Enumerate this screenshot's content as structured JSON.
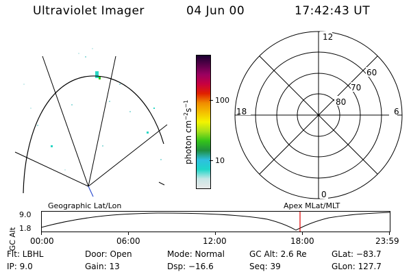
{
  "header": {
    "instrument": "Ultraviolet Imager",
    "date": "04 Jun 00",
    "time": "17:42:43 UT"
  },
  "colorbar": {
    "axis_label": "photon cm^-2 s^-1",
    "tick_100": "100",
    "tick_10": "10",
    "stops": [
      "#e8e8e8",
      "#c8e6e6",
      "#1fd6c8",
      "#2ebfe0",
      "#1f8f3f",
      "#34c31a",
      "#a6e01a",
      "#f4f400",
      "#f4c000",
      "#f08c00",
      "#e02000",
      "#c80040",
      "#9a0060",
      "#5a004a",
      "#1a0030"
    ]
  },
  "polar_plot": {
    "labels": {
      "top": "12",
      "left": "18",
      "right": "6",
      "bottom": "0"
    },
    "lat_labels": [
      "60",
      "70",
      "80"
    ]
  },
  "timeline": {
    "left_label": "Geographic Lat/Lon",
    "right_label": "Apex MLat/MLT",
    "ylabel": "GC Alt",
    "y_ticks": [
      "9.0",
      "1.8"
    ],
    "x_ticks": [
      "00:00",
      "06:00",
      "12:00",
      "18:00",
      "23:59"
    ],
    "marker_color": "#e00000"
  },
  "info": {
    "flt": "Flt:  LBHL",
    "ip": "IP:  9.0",
    "door": "Door: Open",
    "gain": "Gain: 13",
    "mode": "Mode: Normal",
    "dsp": "Dsp:   −16.6",
    "gc_alt": "GC Alt: 2.6 Re",
    "seq": "Seq: 39",
    "glat": "GLat:  −83.7",
    "glon": "GLon: 127.7"
  }
}
